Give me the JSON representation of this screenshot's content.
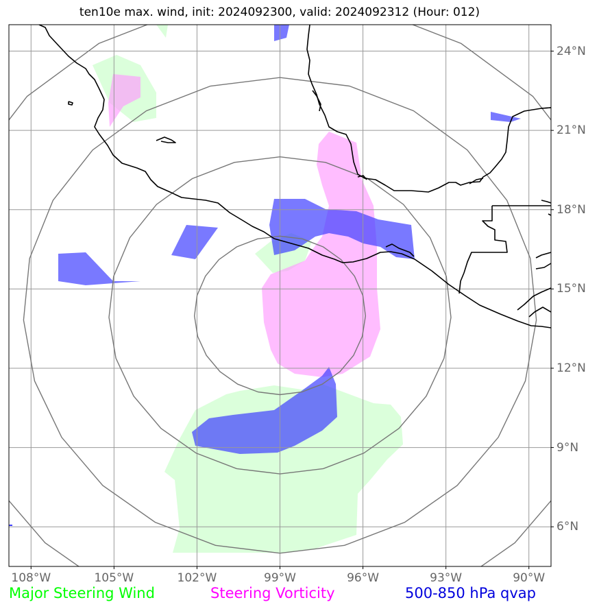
{
  "title": "ten10e max. wind, init: 2024092300, valid: 2024092312 (Hour: 012)",
  "map": {
    "lon_range": [
      -108.8,
      -89.2
    ],
    "lat_range": [
      4.5,
      25.0
    ],
    "center": {
      "lon": -99.0,
      "lat": 14.0
    },
    "range_rings_deg": [
      3,
      6,
      9,
      12
    ],
    "lon_ticks": [
      {
        "value": -108,
        "label": "108°W"
      },
      {
        "value": -105,
        "label": "105°W"
      },
      {
        "value": -102,
        "label": "102°W"
      },
      {
        "value": -99,
        "label": "99°W"
      },
      {
        "value": -96,
        "label": "96°W"
      },
      {
        "value": -93,
        "label": "93°W"
      },
      {
        "value": -90,
        "label": "90°W"
      }
    ],
    "lat_ticks": [
      {
        "value": 24,
        "label": "24°N"
      },
      {
        "value": 21,
        "label": "21°N"
      },
      {
        "value": 18,
        "label": "18°N"
      },
      {
        "value": 15,
        "label": "15°N"
      },
      {
        "value": 12,
        "label": "12°N"
      },
      {
        "value": 9,
        "label": "9°N"
      },
      {
        "value": 6,
        "label": "6°N"
      }
    ]
  },
  "legend": [
    {
      "label": "Major Steering Wind",
      "color": "#00ff00"
    },
    {
      "label": "Steering Vorticity",
      "color": "#ff00ff"
    },
    {
      "label": "500-850 hPa qvap",
      "color": "#0000dd"
    }
  ],
  "colors": {
    "wind_fill": "#ccffcc",
    "vorticity_fill": "#ffb3ff",
    "qvap_fill": "#4040ff",
    "grid": "#999999",
    "rings": "#777777",
    "coast": "#000000"
  }
}
